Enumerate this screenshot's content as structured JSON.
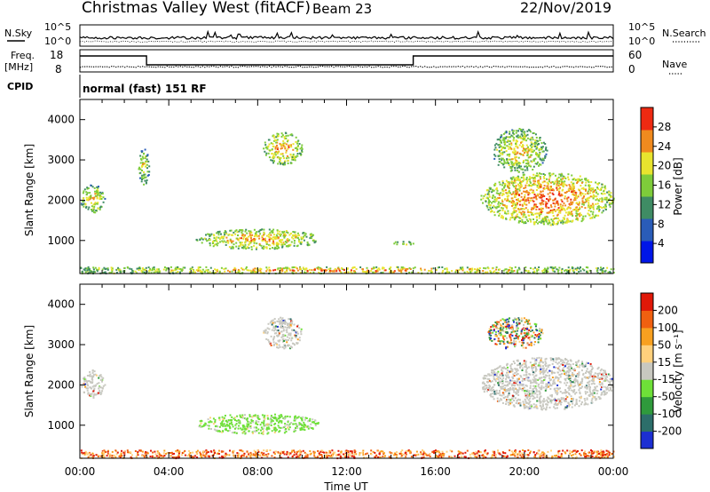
{
  "header": {
    "title": "Christmas Valley West (fitACF)",
    "beam": "Beam 23",
    "date": "22/Nov/2019"
  },
  "strip_top": {
    "left_label": "N.Sky",
    "right_label": "N.Search",
    "left_ticks": [
      "10^5",
      "10^0"
    ],
    "right_ticks": [
      "10^5",
      "10^0"
    ]
  },
  "strip_mid": {
    "left_label_line1": "Freq.",
    "left_label_line2": "[MHz]",
    "left_ticks": [
      "18",
      "8"
    ],
    "right_label": "Nave",
    "right_ticks": [
      "60",
      "0"
    ],
    "freq_steps": [
      {
        "from_hour": 0,
        "to_hour": 3,
        "level": "high"
      },
      {
        "from_hour": 3,
        "to_hour": 15,
        "level": "low"
      },
      {
        "from_hour": 15,
        "to_hour": 24,
        "level": "high"
      }
    ]
  },
  "cpid": {
    "label": "CPID",
    "value": "normal (fast) 151 RF"
  },
  "chart_data": [
    {
      "type": "heatmap",
      "name": "power",
      "ylabel": "Slant Range [km]",
      "ylim": [
        180,
        4500
      ],
      "y_ticks": [
        "1000",
        "2000",
        "3000",
        "4000"
      ],
      "xlim": [
        0,
        24
      ],
      "colorbar_label": "Power [dB]",
      "colorbar_ticks": [
        "4",
        "8",
        "12",
        "16",
        "20",
        "24",
        "28"
      ],
      "colors": [
        "#0016e8",
        "#2a5cb8",
        "#3f8c64",
        "#7ecc3a",
        "#e8e42e",
        "#f08a1e",
        "#ee2a12"
      ],
      "regions": [
        {
          "x": [
            0.0,
            1.1
          ],
          "y": [
            1700,
            2400
          ],
          "level": 0.35
        },
        {
          "x": [
            2.6,
            3.1
          ],
          "y": [
            2400,
            3300
          ],
          "level": 0.25
        },
        {
          "x": [
            5.2,
            10.8
          ],
          "y": [
            800,
            1300
          ],
          "level": 0.45
        },
        {
          "x": [
            8.2,
            10.0
          ],
          "y": [
            2900,
            3700
          ],
          "level": 0.45
        },
        {
          "x": [
            14.0,
            15.0
          ],
          "y": [
            900,
            1000
          ],
          "level": 0.25
        },
        {
          "x": [
            18.0,
            24.0
          ],
          "y": [
            1400,
            2700
          ],
          "level": 0.6
        },
        {
          "x": [
            18.5,
            21.0
          ],
          "y": [
            2700,
            3800
          ],
          "level": 0.35
        },
        {
          "x": [
            0.0,
            24.0
          ],
          "y": [
            200,
            360
          ],
          "level": 0.5
        }
      ]
    },
    {
      "type": "heatmap",
      "name": "velocity",
      "ylabel": "Slant Range [km]",
      "ylim": [
        180,
        4500
      ],
      "y_ticks": [
        "1000",
        "2000",
        "3000",
        "4000"
      ],
      "xlim": [
        0,
        24
      ],
      "xlabel": "Time UT",
      "x_ticks": [
        "00:00",
        "04:00",
        "08:00",
        "12:00",
        "16:00",
        "20:00",
        "00:00"
      ],
      "colorbar_label": "Velocity [m s⁻¹]",
      "colorbar_ticks": [
        "200",
        "100",
        "50",
        "15",
        "-15",
        "-50",
        "-100",
        "-200"
      ],
      "colors": [
        "#1c2fd2",
        "#2c6e6a",
        "#2f9a3c",
        "#6ee038",
        "#c8c8c0",
        "#ffd07c",
        "#f8a020",
        "#f06010",
        "#e01808"
      ],
      "regions": [
        {
          "x": [
            0.0,
            1.1
          ],
          "y": [
            1700,
            2400
          ],
          "level": "ground"
        },
        {
          "x": [
            5.2,
            10.8
          ],
          "y": [
            800,
            1300
          ],
          "level": "slow-positive"
        },
        {
          "x": [
            8.2,
            10.0
          ],
          "y": [
            2900,
            3700
          ],
          "level": "ground"
        },
        {
          "x": [
            18.0,
            24.0
          ],
          "y": [
            1400,
            2700
          ],
          "level": "ground"
        },
        {
          "x": [
            18.3,
            20.8
          ],
          "y": [
            2900,
            3700
          ],
          "level": "mixed"
        },
        {
          "x": [
            0.0,
            24.0
          ],
          "y": [
            200,
            400
          ],
          "level": "negative"
        }
      ]
    }
  ]
}
